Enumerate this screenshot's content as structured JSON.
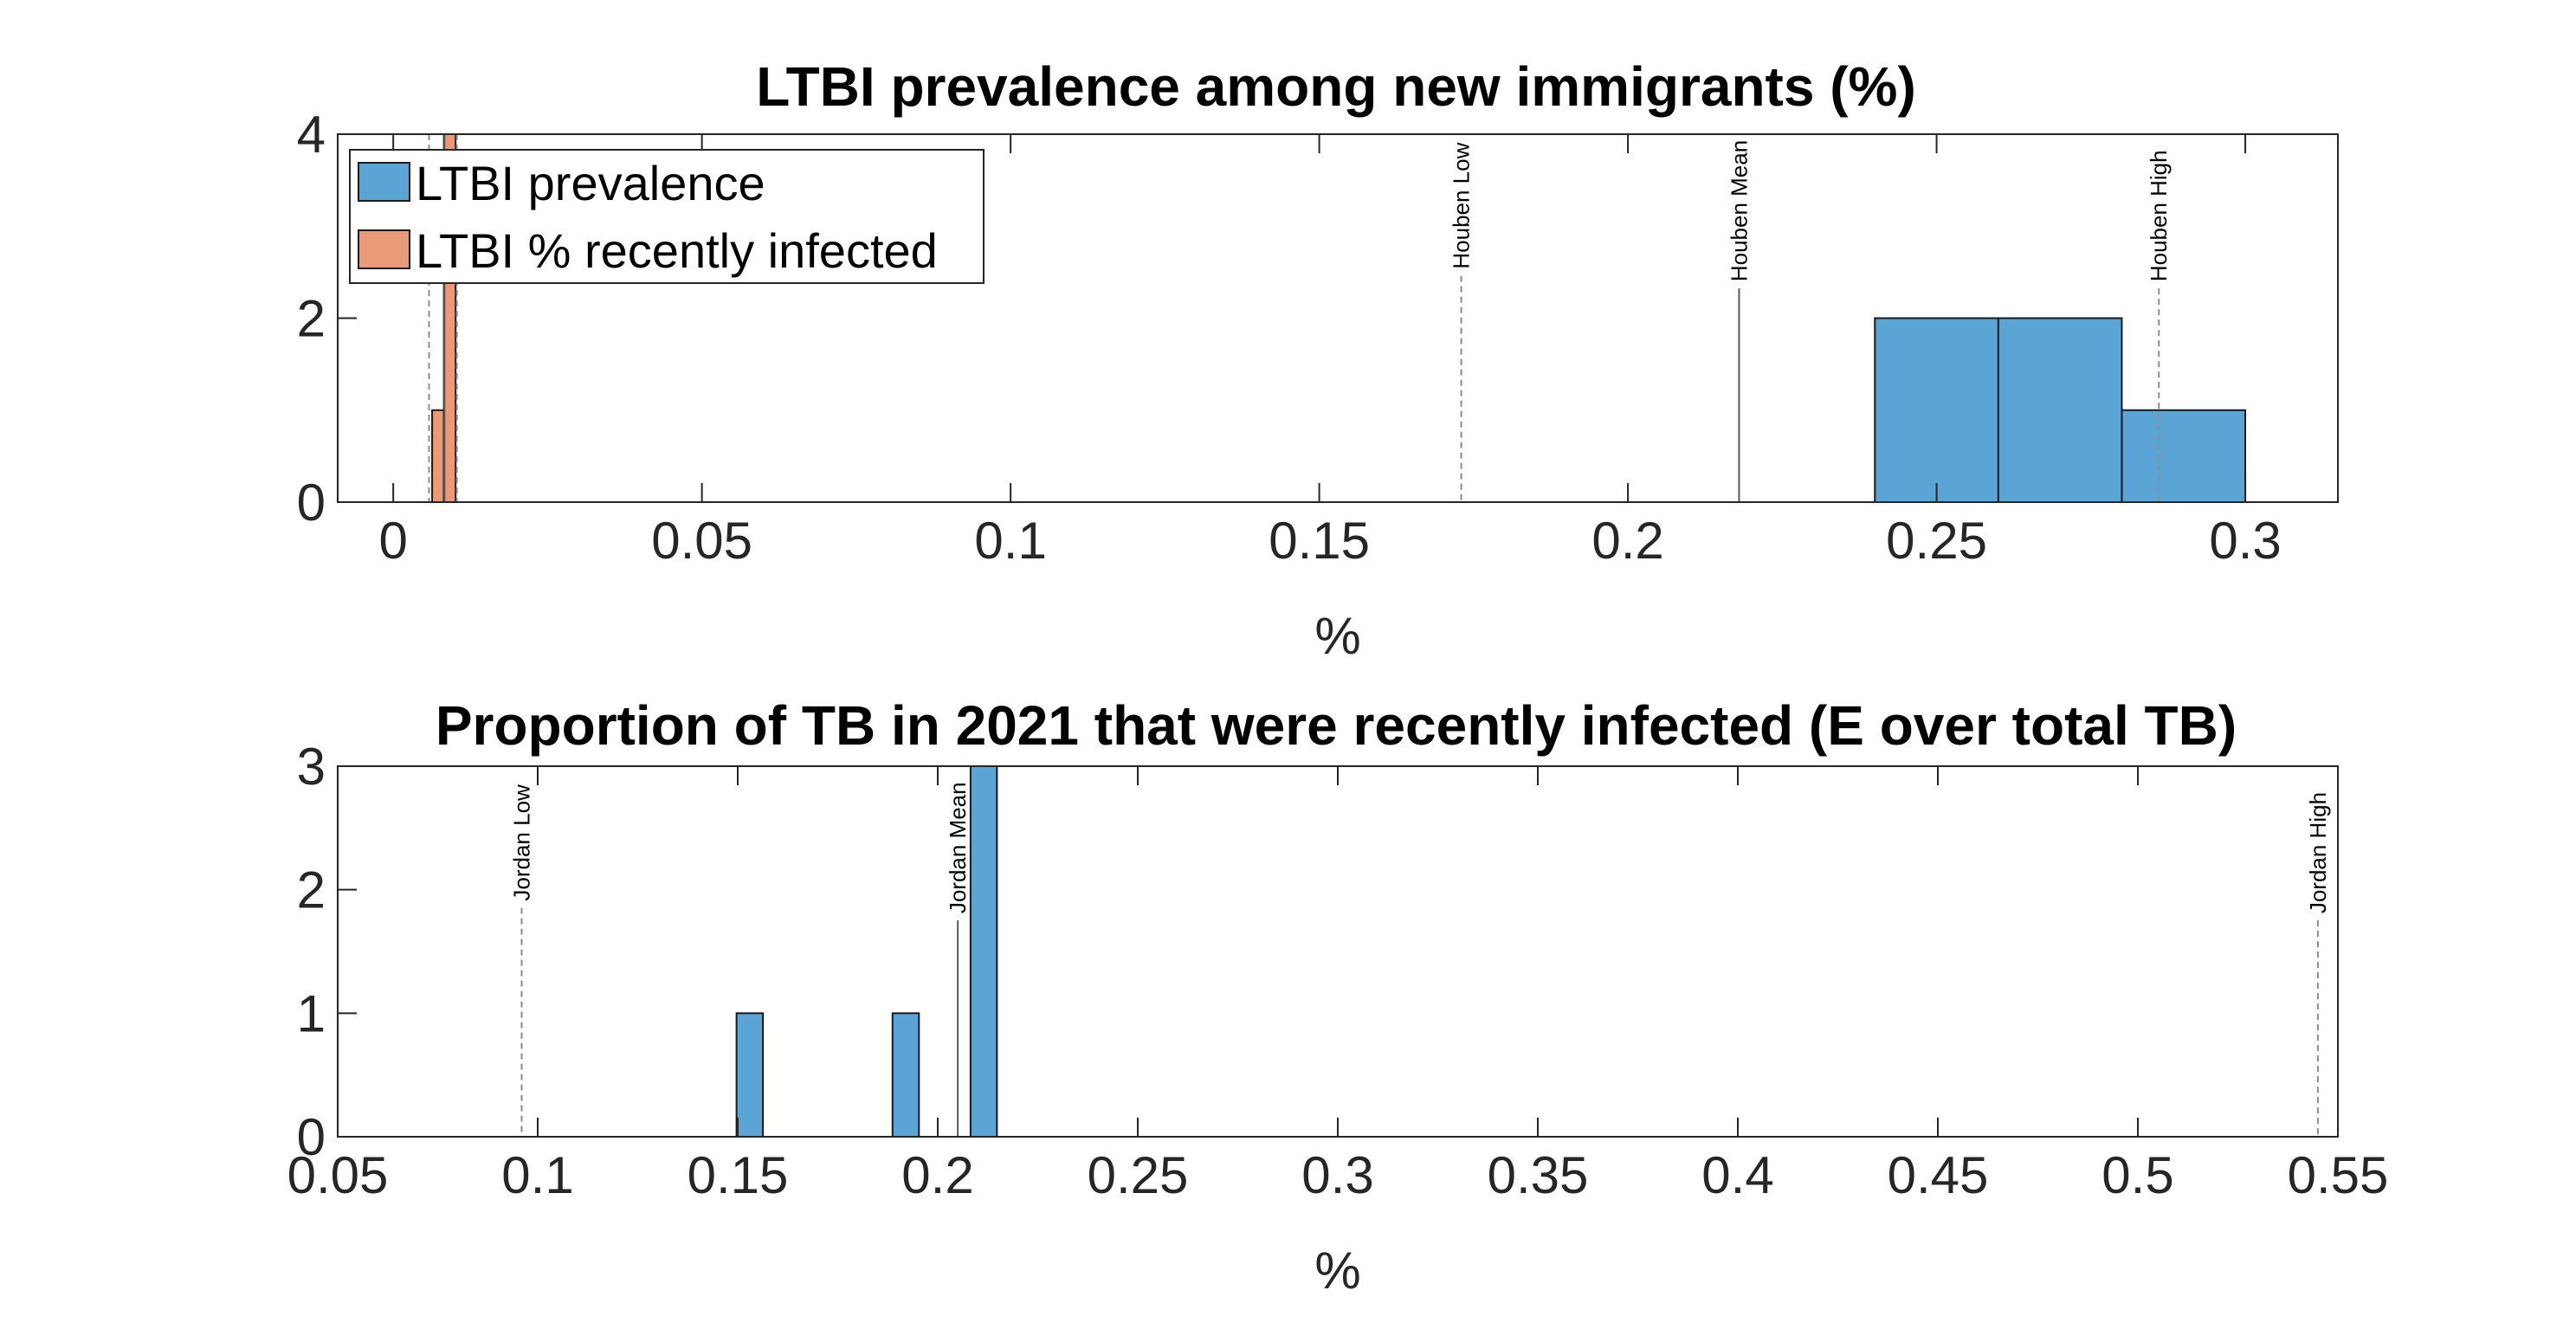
{
  "chart_data": [
    {
      "type": "histogram",
      "title": "LTBI prevalence among new immigrants (%)",
      "xlabel": "%",
      "ylabel": "",
      "xlim": [
        -0.009,
        0.315
      ],
      "ylim": [
        0,
        4
      ],
      "xticks": [
        0,
        0.05,
        0.1,
        0.15,
        0.2,
        0.25,
        0.3
      ],
      "xtick_labels": [
        "0",
        "0.05",
        "0.1",
        "0.15",
        "0.2",
        "0.25",
        "0.3"
      ],
      "yticks": [
        0,
        2,
        4
      ],
      "ytick_labels": [
        "0",
        "2",
        "4"
      ],
      "legend_position": "top-left",
      "series": [
        {
          "name": "LTBI prevalence",
          "color": "#5ba4d6",
          "bins": [
            {
              "x0": 0.24,
              "x1": 0.26,
              "count": 2
            },
            {
              "x0": 0.26,
              "x1": 0.28,
              "count": 2
            },
            {
              "x0": 0.28,
              "x1": 0.3,
              "count": 1
            }
          ]
        },
        {
          "name": "LTBI % recently infected",
          "color": "#e99a76",
          "bins": [
            {
              "x0": 0.0063,
              "x1": 0.0082,
              "count": 1
            },
            {
              "x0": 0.0082,
              "x1": 0.0101,
              "count": 4
            }
          ]
        }
      ],
      "reference_lines": [
        {
          "label": "Houben Low",
          "x": 0.173,
          "style": "dashed"
        },
        {
          "label": "Houben Mean",
          "x": 0.218,
          "style": "solid"
        },
        {
          "label": "Houben High",
          "x": 0.286,
          "style": "dashed"
        },
        {
          "label": "",
          "x": 0.0058,
          "style": "dashed"
        },
        {
          "label": "",
          "x": 0.0083,
          "style": "solid"
        },
        {
          "label": "",
          "x": 0.0103,
          "style": "dashed"
        }
      ]
    },
    {
      "type": "histogram",
      "title": "Proportion of TB in 2021 that were recently infected (E over total TB)",
      "xlabel": "%",
      "ylabel": "",
      "xlim": [
        0.05,
        0.55
      ],
      "ylim": [
        0,
        3
      ],
      "xticks": [
        0.05,
        0.1,
        0.15,
        0.2,
        0.25,
        0.3,
        0.35,
        0.4,
        0.45,
        0.5,
        0.55
      ],
      "xtick_labels": [
        "0.05",
        "0.1",
        "0.15",
        "0.2",
        "0.25",
        "0.3",
        "0.35",
        "0.4",
        "0.45",
        "0.5",
        "0.55"
      ],
      "yticks": [
        0,
        1,
        2,
        3
      ],
      "ytick_labels": [
        "0",
        "1",
        "2",
        "3"
      ],
      "series": [
        {
          "name": "",
          "color": "#5ba4d6",
          "bins": [
            {
              "x0": 0.1497,
              "x1": 0.1563,
              "count": 1
            },
            {
              "x0": 0.1887,
              "x1": 0.1953,
              "count": 1
            },
            {
              "x0": 0.2082,
              "x1": 0.2148,
              "count": 3
            }
          ]
        }
      ],
      "reference_lines": [
        {
          "label": "Jordan Low",
          "x": 0.096,
          "style": "dashed"
        },
        {
          "label": "Jordan Mean",
          "x": 0.205,
          "style": "solid"
        },
        {
          "label": "Jordan High",
          "x": 0.545,
          "style": "dashed"
        }
      ]
    }
  ]
}
